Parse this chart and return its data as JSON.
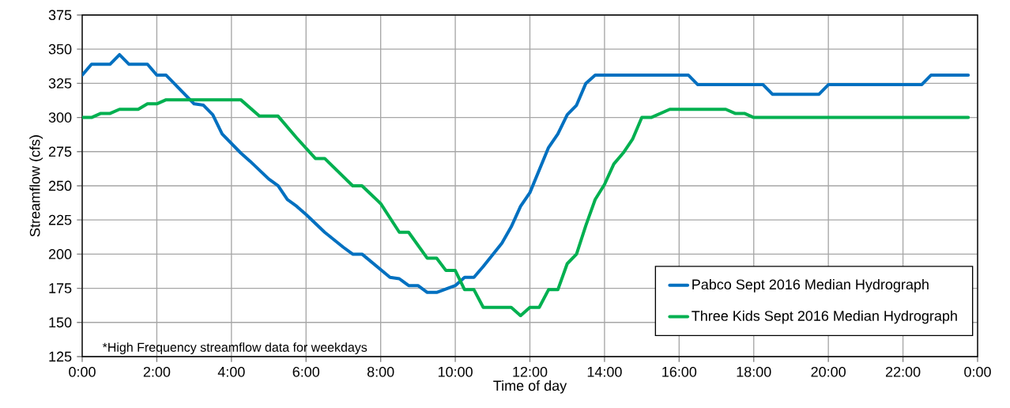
{
  "chart_data": {
    "type": "line",
    "xlabel": "Time of day",
    "ylabel": "Streamflow (cfs)",
    "xlim": [
      0,
      24
    ],
    "ylim": [
      125,
      375
    ],
    "xticks": [
      {
        "value": 0,
        "label": "0:00"
      },
      {
        "value": 2,
        "label": "2:00"
      },
      {
        "value": 4,
        "label": "4:00"
      },
      {
        "value": 6,
        "label": "6:00"
      },
      {
        "value": 8,
        "label": "8:00"
      },
      {
        "value": 10,
        "label": "10:00"
      },
      {
        "value": 12,
        "label": "12:00"
      },
      {
        "value": 14,
        "label": "14:00"
      },
      {
        "value": 16,
        "label": "16:00"
      },
      {
        "value": 18,
        "label": "18:00"
      },
      {
        "value": 20,
        "label": "20:00"
      },
      {
        "value": 22,
        "label": "22:00"
      },
      {
        "value": 24,
        "label": "0:00"
      }
    ],
    "yticks": [
      125,
      150,
      175,
      200,
      225,
      250,
      275,
      300,
      325,
      350,
      375
    ],
    "grid": true,
    "legend": "bottom right",
    "marker": "none",
    "line_style": "solid",
    "annotations": [
      "*High Frequency streamflow data for weekdays"
    ],
    "series": [
      {
        "name": "Pabco Sept 2016 Median Hydrograph",
        "color": "#0070c0",
        "x": [
          0,
          0.25,
          0.75,
          1,
          1.25,
          1.75,
          2,
          2.25,
          3,
          3.25,
          3.5,
          3.75,
          4.25,
          4.5,
          5,
          5.25,
          5.5,
          5.75,
          6,
          6.5,
          7,
          7.25,
          7.5,
          8.25,
          8.5,
          8.75,
          9,
          9.25,
          9.5,
          10,
          10.25,
          10.5,
          10.75,
          11.25,
          11.5,
          11.75,
          12,
          12.5,
          12.75,
          13,
          13.25,
          13.5,
          13.75,
          16.25,
          16.5,
          18.25,
          18.5,
          19.75,
          20,
          22.5,
          22.75,
          23.75
        ],
        "values": [
          331,
          339,
          339,
          346,
          339,
          339,
          331,
          331,
          310,
          309,
          302,
          288,
          274,
          268,
          255,
          250,
          240,
          235,
          229,
          216,
          205,
          200,
          200,
          183,
          182,
          177,
          177,
          172,
          172,
          177,
          183,
          183,
          191,
          208,
          220,
          235,
          245,
          278,
          288,
          302,
          309,
          325,
          331,
          331,
          324,
          324,
          317,
          317,
          324,
          324,
          331,
          331
        ]
      },
      {
        "name": "Three Kids Sept 2016 Median Hydrograph",
        "color": "#00b050",
        "x": [
          0,
          0.25,
          0.5,
          0.75,
          1,
          1.5,
          1.75,
          2,
          2.25,
          4.25,
          4.75,
          5.25,
          5.75,
          6.25,
          6.5,
          7.25,
          7.5,
          8,
          8.5,
          8.75,
          9.25,
          9.5,
          9.75,
          10,
          10.25,
          10.5,
          10.75,
          11.5,
          11.75,
          12,
          12.25,
          12.5,
          12.75,
          13,
          13.25,
          13.5,
          13.75,
          14,
          14.25,
          14.5,
          14.75,
          15,
          15.25,
          15.75,
          17.25,
          17.5,
          17.75,
          18,
          23.75
        ],
        "values": [
          300,
          300,
          303,
          303,
          306,
          306,
          310,
          310,
          313,
          313,
          301,
          301,
          285,
          270,
          270,
          250,
          250,
          237,
          216,
          216,
          197,
          197,
          188,
          188,
          174,
          174,
          161,
          161,
          155,
          161,
          161,
          174,
          174,
          193,
          200,
          221,
          240,
          251,
          266,
          274,
          284,
          300,
          300,
          306,
          306,
          303,
          303,
          300,
          300
        ]
      }
    ]
  }
}
